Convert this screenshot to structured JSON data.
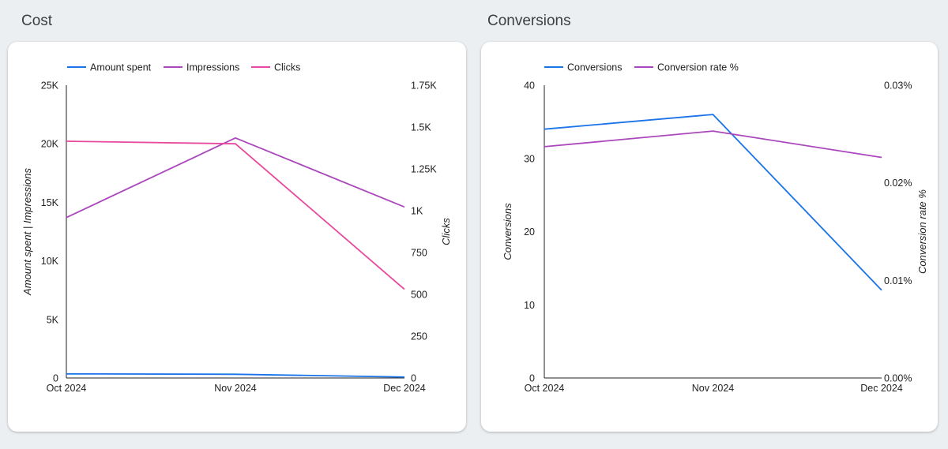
{
  "sections": [
    {
      "title": "Cost"
    },
    {
      "title": "Conversions"
    }
  ],
  "chart_data": [
    {
      "type": "line",
      "title": "Cost",
      "x": [
        "Oct 2024",
        "Nov 2024",
        "Dec 2024"
      ],
      "series": [
        {
          "name": "Amount spent",
          "color": "#1a73e8",
          "axis": "left",
          "values": [
            350,
            320,
            80
          ]
        },
        {
          "name": "Impressions",
          "color": "#ab47bc",
          "axis": "left",
          "values": [
            13700,
            20500,
            14600
          ]
        },
        {
          "name": "Clicks",
          "color": "#e8499e",
          "axis": "right",
          "values": [
            1415,
            1400,
            530
          ]
        }
      ],
      "y_left": {
        "label": "Amount spent | Impressions",
        "min": 0,
        "max": 25000,
        "ticks": [
          0,
          5000,
          10000,
          15000,
          20000,
          25000
        ],
        "tick_labels": [
          "0",
          "5K",
          "10K",
          "15K",
          "20K",
          "25K"
        ]
      },
      "y_right": {
        "label": "Clicks",
        "min": 0,
        "max": 1750,
        "ticks": [
          0,
          250,
          500,
          750,
          1000,
          1250,
          1500,
          1750
        ],
        "tick_labels": [
          "0",
          "250",
          "500",
          "750",
          "1K",
          "1.25K",
          "1.5K",
          "1.75K"
        ]
      },
      "grid": false,
      "legend": "top-left"
    },
    {
      "type": "line",
      "title": "Conversions",
      "x": [
        "Oct 2024",
        "Nov 2024",
        "Dec 2024"
      ],
      "series": [
        {
          "name": "Conversions",
          "color": "#1a73e8",
          "axis": "left",
          "values": [
            34,
            36,
            12
          ]
        },
        {
          "name": "Conversion rate %",
          "color": "#ab47bc",
          "axis": "right",
          "values": [
            0.0237,
            0.0253,
            0.0226
          ]
        }
      ],
      "y_left": {
        "label": "Conversions",
        "min": 0,
        "max": 40,
        "ticks": [
          0,
          10,
          20,
          30,
          40
        ],
        "tick_labels": [
          "0",
          "10",
          "20",
          "30",
          "40"
        ]
      },
      "y_right": {
        "label": "Conversion rate %",
        "min": 0,
        "max": 0.03,
        "ticks": [
          0,
          0.01,
          0.02,
          0.03
        ],
        "tick_labels": [
          "0.00%",
          "0.01%",
          "0.02%",
          "0.03%"
        ]
      },
      "grid": false,
      "legend": "top-left"
    }
  ]
}
